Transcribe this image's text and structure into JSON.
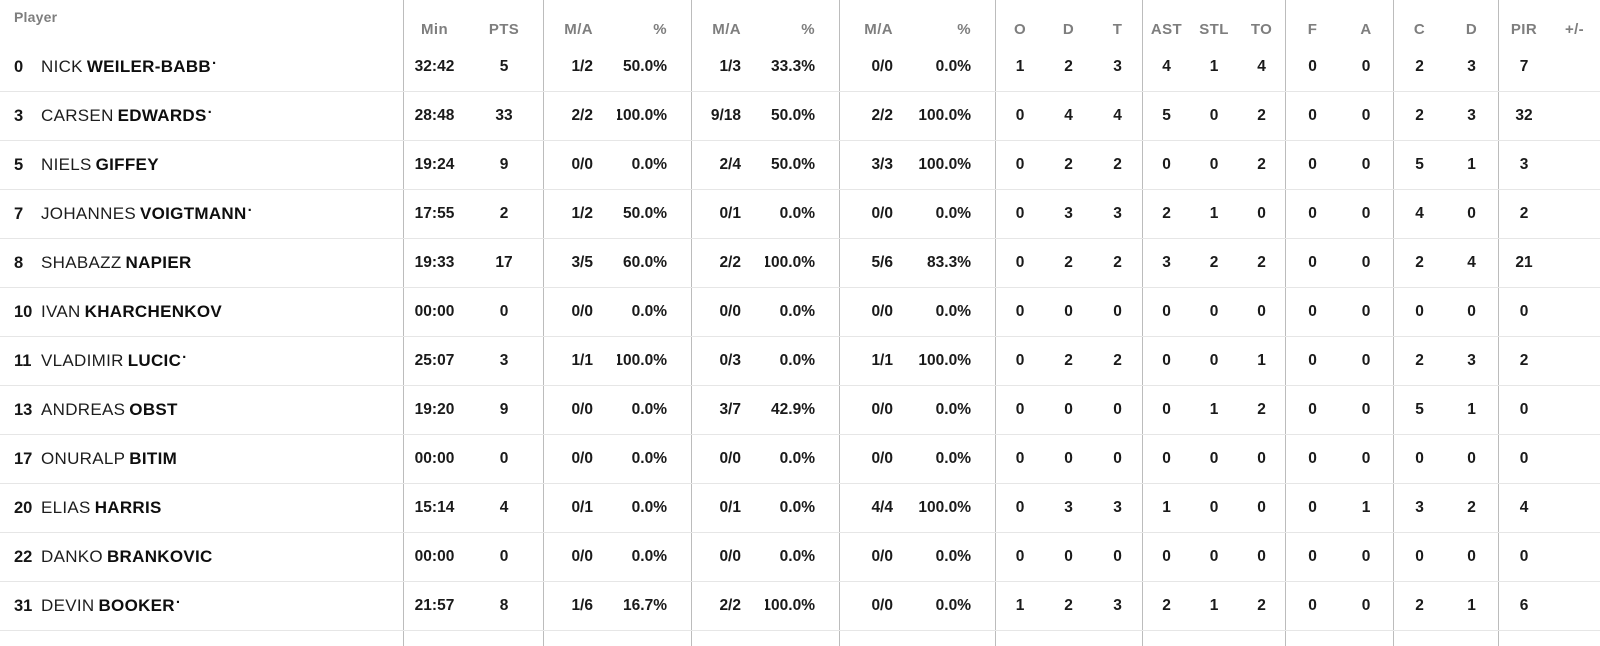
{
  "table": {
    "starter_indicator": "·",
    "headers": {
      "player": "Player",
      "min": "Min",
      "pts": "PTS",
      "fg2_ma": "M/A",
      "fg2_pct": "%",
      "fg3_ma": "M/A",
      "fg3_pct": "%",
      "ft_ma": "M/A",
      "ft_pct": "%",
      "reb_o": "O",
      "reb_d": "D",
      "reb_t": "T",
      "ast": "AST",
      "stl": "STL",
      "to": "TO",
      "f": "F",
      "a": "A",
      "c": "C",
      "d": "D",
      "pir": "PIR",
      "plus_minus": "+/-"
    },
    "rows": [
      {
        "num": "0",
        "first": "NICK",
        "last": "WEILER-BABB",
        "starter": true,
        "min": "32:42",
        "pts": "5",
        "p2ma": "1/2",
        "p2pct": "50.0%",
        "p3ma": "1/3",
        "p3pct": "33.3%",
        "ftma": "0/0",
        "ftpct": "0.0%",
        "ro": "1",
        "rd": "2",
        "rt": "3",
        "ast": "4",
        "stl": "1",
        "to": "4",
        "f": "0",
        "a": "0",
        "c": "2",
        "d": "3",
        "pir": "7",
        "pm": ""
      },
      {
        "num": "3",
        "first": "CARSEN",
        "last": "EDWARDS",
        "starter": true,
        "min": "28:48",
        "pts": "33",
        "p2ma": "2/2",
        "p2pct": "100.0%",
        "p3ma": "9/18",
        "p3pct": "50.0%",
        "ftma": "2/2",
        "ftpct": "100.0%",
        "ro": "0",
        "rd": "4",
        "rt": "4",
        "ast": "5",
        "stl": "0",
        "to": "2",
        "f": "0",
        "a": "0",
        "c": "2",
        "d": "3",
        "pir": "32",
        "pm": ""
      },
      {
        "num": "5",
        "first": "NIELS",
        "last": "GIFFEY",
        "starter": false,
        "min": "19:24",
        "pts": "9",
        "p2ma": "0/0",
        "p2pct": "0.0%",
        "p3ma": "2/4",
        "p3pct": "50.0%",
        "ftma": "3/3",
        "ftpct": "100.0%",
        "ro": "0",
        "rd": "2",
        "rt": "2",
        "ast": "0",
        "stl": "0",
        "to": "2",
        "f": "0",
        "a": "0",
        "c": "5",
        "d": "1",
        "pir": "3",
        "pm": ""
      },
      {
        "num": "7",
        "first": "JOHANNES",
        "last": "VOIGTMANN",
        "starter": true,
        "min": "17:55",
        "pts": "2",
        "p2ma": "1/2",
        "p2pct": "50.0%",
        "p3ma": "0/1",
        "p3pct": "0.0%",
        "ftma": "0/0",
        "ftpct": "0.0%",
        "ro": "0",
        "rd": "3",
        "rt": "3",
        "ast": "2",
        "stl": "1",
        "to": "0",
        "f": "0",
        "a": "0",
        "c": "4",
        "d": "0",
        "pir": "2",
        "pm": ""
      },
      {
        "num": "8",
        "first": "SHABAZZ",
        "last": "NAPIER",
        "starter": false,
        "min": "19:33",
        "pts": "17",
        "p2ma": "3/5",
        "p2pct": "60.0%",
        "p3ma": "2/2",
        "p3pct": "100.0%",
        "ftma": "5/6",
        "ftpct": "83.3%",
        "ro": "0",
        "rd": "2",
        "rt": "2",
        "ast": "3",
        "stl": "2",
        "to": "2",
        "f": "0",
        "a": "0",
        "c": "2",
        "d": "4",
        "pir": "21",
        "pm": ""
      },
      {
        "num": "10",
        "first": "IVAN",
        "last": "KHARCHENKOV",
        "starter": false,
        "min": "00:00",
        "pts": "0",
        "p2ma": "0/0",
        "p2pct": "0.0%",
        "p3ma": "0/0",
        "p3pct": "0.0%",
        "ftma": "0/0",
        "ftpct": "0.0%",
        "ro": "0",
        "rd": "0",
        "rt": "0",
        "ast": "0",
        "stl": "0",
        "to": "0",
        "f": "0",
        "a": "0",
        "c": "0",
        "d": "0",
        "pir": "0",
        "pm": ""
      },
      {
        "num": "11",
        "first": "VLADIMIR",
        "last": "LUCIC",
        "starter": true,
        "min": "25:07",
        "pts": "3",
        "p2ma": "1/1",
        "p2pct": "100.0%",
        "p3ma": "0/3",
        "p3pct": "0.0%",
        "ftma": "1/1",
        "ftpct": "100.0%",
        "ro": "0",
        "rd": "2",
        "rt": "2",
        "ast": "0",
        "stl": "0",
        "to": "1",
        "f": "0",
        "a": "0",
        "c": "2",
        "d": "3",
        "pir": "2",
        "pm": ""
      },
      {
        "num": "13",
        "first": "ANDREAS",
        "last": "OBST",
        "starter": false,
        "min": "19:20",
        "pts": "9",
        "p2ma": "0/0",
        "p2pct": "0.0%",
        "p3ma": "3/7",
        "p3pct": "42.9%",
        "ftma": "0/0",
        "ftpct": "0.0%",
        "ro": "0",
        "rd": "0",
        "rt": "0",
        "ast": "0",
        "stl": "1",
        "to": "2",
        "f": "0",
        "a": "0",
        "c": "5",
        "d": "1",
        "pir": "0",
        "pm": ""
      },
      {
        "num": "17",
        "first": "ONURALP",
        "last": "BITIM",
        "starter": false,
        "min": "00:00",
        "pts": "0",
        "p2ma": "0/0",
        "p2pct": "0.0%",
        "p3ma": "0/0",
        "p3pct": "0.0%",
        "ftma": "0/0",
        "ftpct": "0.0%",
        "ro": "0",
        "rd": "0",
        "rt": "0",
        "ast": "0",
        "stl": "0",
        "to": "0",
        "f": "0",
        "a": "0",
        "c": "0",
        "d": "0",
        "pir": "0",
        "pm": ""
      },
      {
        "num": "20",
        "first": "ELIAS",
        "last": "HARRIS",
        "starter": false,
        "min": "15:14",
        "pts": "4",
        "p2ma": "0/1",
        "p2pct": "0.0%",
        "p3ma": "0/1",
        "p3pct": "0.0%",
        "ftma": "4/4",
        "ftpct": "100.0%",
        "ro": "0",
        "rd": "3",
        "rt": "3",
        "ast": "1",
        "stl": "0",
        "to": "0",
        "f": "0",
        "a": "1",
        "c": "3",
        "d": "2",
        "pir": "4",
        "pm": ""
      },
      {
        "num": "22",
        "first": "DANKO",
        "last": "BRANKOVIC",
        "starter": false,
        "min": "00:00",
        "pts": "0",
        "p2ma": "0/0",
        "p2pct": "0.0%",
        "p3ma": "0/0",
        "p3pct": "0.0%",
        "ftma": "0/0",
        "ftpct": "0.0%",
        "ro": "0",
        "rd": "0",
        "rt": "0",
        "ast": "0",
        "stl": "0",
        "to": "0",
        "f": "0",
        "a": "0",
        "c": "0",
        "d": "0",
        "pir": "0",
        "pm": ""
      },
      {
        "num": "31",
        "first": "DEVIN",
        "last": "BOOKER",
        "starter": true,
        "min": "21:57",
        "pts": "8",
        "p2ma": "1/6",
        "p2pct": "16.7%",
        "p3ma": "2/2",
        "p3pct": "100.0%",
        "ftma": "0/0",
        "ftpct": "0.0%",
        "ro": "1",
        "rd": "2",
        "rt": "3",
        "ast": "2",
        "stl": "1",
        "to": "2",
        "f": "0",
        "a": "0",
        "c": "2",
        "d": "1",
        "pir": "6",
        "pm": ""
      }
    ]
  }
}
